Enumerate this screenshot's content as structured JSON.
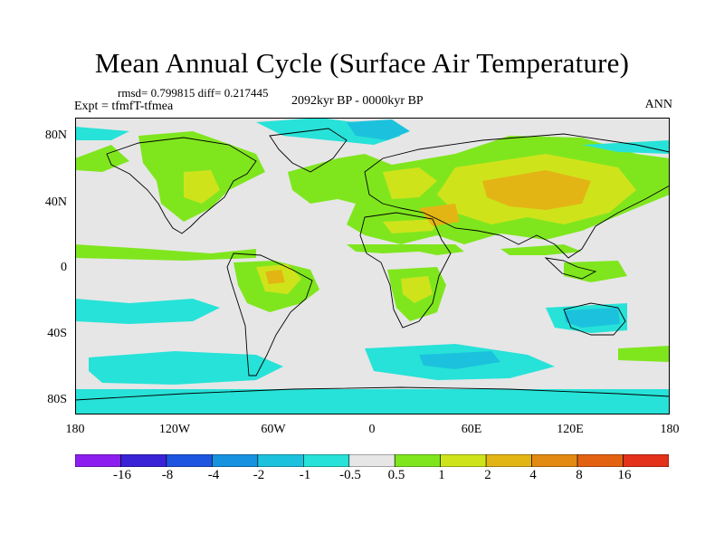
{
  "title": "Mean Annual Cycle (Surface Air Temperature)",
  "stats_text": "rmsd= 0.799815 diff= 0.217445",
  "experiment": "Expt = tfmfT-tfmea",
  "period": "2092kyr BP - 0000kyr BP",
  "season": "ANN",
  "lat_labels": [
    "80N",
    "40N",
    "0",
    "40S",
    "80S"
  ],
  "lon_labels": [
    "180",
    "120W",
    "60W",
    "0",
    "60E",
    "120E",
    "180"
  ],
  "colorbar": {
    "labels": [
      "-16",
      "-8",
      "-4",
      "-2",
      "-1",
      "-0.5",
      "0.5",
      "1",
      "2",
      "4",
      "8",
      "16"
    ],
    "colors": [
      "#8c1ff0",
      "#3a22d6",
      "#1d55e0",
      "#1692df",
      "#1cc2dd",
      "#27e2d8",
      "#e6e6e6",
      "#7fe61e",
      "#cfe31b",
      "#e3b514",
      "#e38a12",
      "#e36212",
      "#e3311a"
    ]
  }
}
